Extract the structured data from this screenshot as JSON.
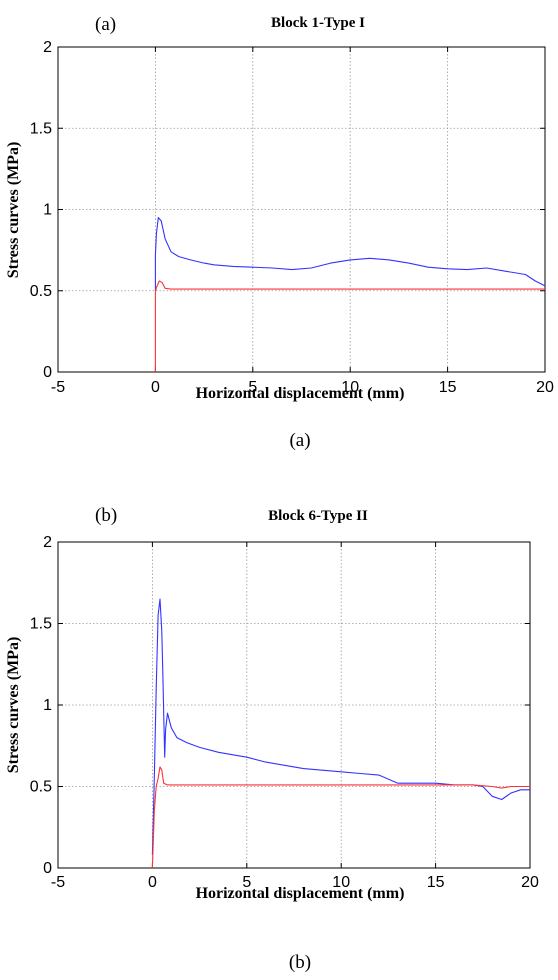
{
  "chart_data": [
    {
      "type": "line",
      "panel_label": "(a)",
      "title": "Block 1-Type I",
      "xlabel": "Horizontal displacement (mm)",
      "ylabel": "Stress curves (MPa)",
      "caption": "(a)",
      "xlim": [
        -5,
        20
      ],
      "ylim": [
        0,
        2
      ],
      "xticks": [
        "-5",
        "0",
        "5",
        "10",
        "15",
        "20"
      ],
      "yticks": [
        "0",
        "0.5",
        "1",
        "1.5",
        "2"
      ],
      "grid": true,
      "series": [
        {
          "color": "#3333ff",
          "x": [
            0,
            0,
            0.05,
            0.15,
            0.3,
            0.5,
            0.8,
            1.2,
            1.8,
            2.5,
            3,
            4,
            5,
            6,
            7,
            8,
            9,
            10,
            11,
            12,
            13,
            14,
            15,
            16,
            17,
            18,
            19,
            19.5,
            20
          ],
          "y": [
            0.5,
            0.72,
            0.85,
            0.95,
            0.93,
            0.82,
            0.74,
            0.71,
            0.69,
            0.67,
            0.66,
            0.65,
            0.645,
            0.64,
            0.63,
            0.64,
            0.67,
            0.69,
            0.7,
            0.69,
            0.67,
            0.645,
            0.635,
            0.63,
            0.64,
            0.62,
            0.6,
            0.56,
            0.53
          ]
        },
        {
          "color": "#ff3333",
          "x": [
            0,
            0,
            0.05,
            0.2,
            0.35,
            0.5,
            0.8,
            2,
            5,
            10,
            15,
            20
          ],
          "y": [
            0,
            0.49,
            0.52,
            0.56,
            0.55,
            0.515,
            0.51,
            0.51,
            0.51,
            0.51,
            0.51,
            0.51
          ]
        }
      ]
    },
    {
      "type": "line",
      "panel_label": "(b)",
      "title": "Block 6-Type II",
      "xlabel": "Horizontal displacement (mm)",
      "ylabel": "Stress curves (MPa)",
      "caption": "(b)",
      "xlim": [
        -5,
        20
      ],
      "ylim": [
        0,
        2
      ],
      "xticks": [
        "-5",
        "0",
        "5",
        "10",
        "15",
        "20"
      ],
      "yticks": [
        "0",
        "0.5",
        "1",
        "1.5",
        "2"
      ],
      "grid": true,
      "series": [
        {
          "color": "#3333ff",
          "x": [
            0,
            0.05,
            0.1,
            0.2,
            0.3,
            0.4,
            0.5,
            0.55,
            0.6,
            0.65,
            0.7,
            0.8,
            1,
            1.3,
            1.8,
            2.5,
            3.5,
            5,
            6,
            7,
            8,
            9,
            10,
            11,
            12,
            13,
            14,
            15,
            16,
            17,
            17.5,
            18,
            18.5,
            19,
            19.5,
            20
          ],
          "y": [
            0.08,
            0.3,
            0.55,
            1.1,
            1.55,
            1.65,
            1.45,
            1.2,
            0.95,
            0.68,
            0.85,
            0.95,
            0.86,
            0.8,
            0.77,
            0.74,
            0.71,
            0.68,
            0.65,
            0.63,
            0.61,
            0.6,
            0.59,
            0.58,
            0.57,
            0.52,
            0.52,
            0.52,
            0.51,
            0.51,
            0.5,
            0.44,
            0.42,
            0.46,
            0.48,
            0.48
          ]
        },
        {
          "color": "#ff3333",
          "x": [
            0,
            0.1,
            0.2,
            0.3,
            0.4,
            0.5,
            0.6,
            0.8,
            1.5,
            5,
            10,
            15,
            17,
            18,
            18.5,
            19,
            20
          ],
          "y": [
            0,
            0.35,
            0.5,
            0.55,
            0.62,
            0.6,
            0.52,
            0.51,
            0.51,
            0.51,
            0.51,
            0.51,
            0.51,
            0.5,
            0.49,
            0.5,
            0.5
          ]
        }
      ]
    }
  ]
}
